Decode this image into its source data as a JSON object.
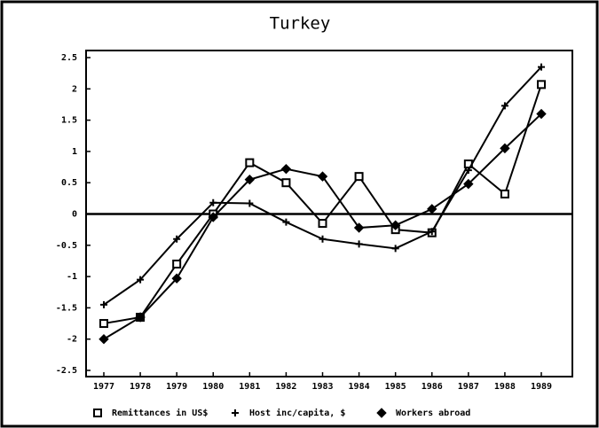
{
  "chart_data": {
    "type": "line",
    "title": "Turkey",
    "categories": [
      "1977",
      "1978",
      "1979",
      "1980",
      "1981",
      "1982",
      "1983",
      "1984",
      "1985",
      "1986",
      "1987",
      "1988",
      "1989"
    ],
    "series": [
      {
        "name": "Remittances in US$",
        "color": "#000000",
        "marker": "square",
        "values": [
          -1.75,
          -1.65,
          -0.8,
          0,
          0.82,
          0.5,
          -0.15,
          0.6,
          -0.25,
          -0.3,
          0.8,
          0.32,
          2.07
        ]
      },
      {
        "name": "Host inc/capita, $",
        "color": "#000000",
        "marker": "plus",
        "values": [
          -1.45,
          -1.05,
          -0.4,
          0.18,
          0.17,
          -0.13,
          -0.4,
          -0.48,
          -0.55,
          -0.28,
          0.7,
          1.73,
          2.35
        ]
      },
      {
        "name": "Workers abroad",
        "color": "#000000",
        "marker": "diamond",
        "values": [
          -2.0,
          -1.65,
          -1.03,
          -0.05,
          0.55,
          0.72,
          0.6,
          -0.22,
          -0.18,
          0.08,
          0.48,
          1.05,
          1.6
        ]
      }
    ],
    "ylim": [
      -2.5,
      2.5
    ],
    "yticks": [
      2.5,
      2,
      1.5,
      1,
      0.5,
      0,
      -0.5,
      -1,
      -1.5,
      -2,
      -2.5
    ],
    "legend": "bottom"
  }
}
